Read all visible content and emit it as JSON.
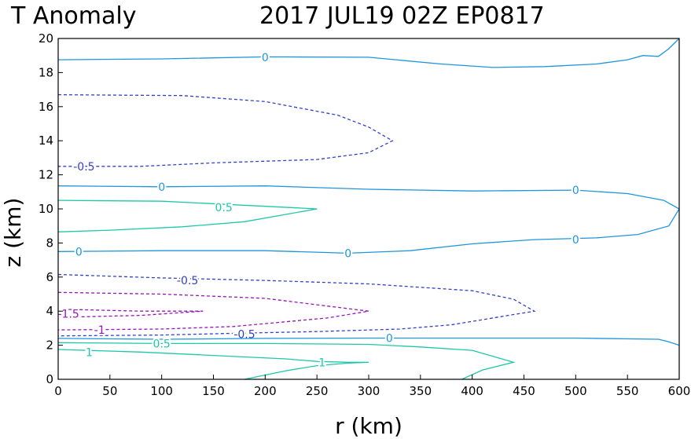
{
  "chart_data": {
    "type": "contour",
    "title_left": "T Anomaly",
    "title_right": "2017 JUL19 02Z   EP0817",
    "xlabel": "r (km)",
    "ylabel": "z (km)",
    "xlim": [
      0,
      600
    ],
    "ylim": [
      0,
      20
    ],
    "xticks": [
      "0",
      "50",
      "100",
      "150",
      "200",
      "250",
      "300",
      "350",
      "400",
      "450",
      "500",
      "550",
      "600"
    ],
    "yticks": [
      "0",
      "2",
      "4",
      "6",
      "8",
      "10",
      "12",
      "14",
      "16",
      "18",
      "20"
    ],
    "colors": {
      "zero": "#1e96dc",
      "positive": "#1ec8aa",
      "negative": "#3240c8",
      "strong_negative": "#9614b4"
    },
    "contours": [
      {
        "level": "0",
        "style": "zero",
        "points": [
          [
            0,
            18.75
          ],
          [
            100,
            18.8
          ],
          [
            200,
            18.92
          ],
          [
            300,
            18.9
          ],
          [
            370,
            18.5
          ],
          [
            420,
            18.3
          ],
          [
            470,
            18.35
          ],
          [
            520,
            18.5
          ],
          [
            550,
            18.75
          ],
          [
            565,
            19
          ],
          [
            580,
            18.95
          ],
          [
            590,
            19.4
          ],
          [
            600,
            20
          ]
        ],
        "labels": [
          {
            "text": "0",
            "x": 200,
            "y": 18.9
          }
        ]
      },
      {
        "level": "-0.5",
        "style": "negative",
        "points": [
          [
            0,
            16.7
          ],
          [
            120,
            16.65
          ],
          [
            200,
            16.3
          ],
          [
            270,
            15.5
          ],
          [
            300,
            14.8
          ],
          [
            323,
            14.0
          ],
          [
            300,
            13.3
          ],
          [
            250,
            12.9
          ],
          [
            150,
            12.7
          ],
          [
            80,
            12.5
          ],
          [
            0,
            12.5
          ]
        ],
        "labels": [
          {
            "text": "-0.5",
            "x": 25,
            "y": 12.5
          }
        ]
      },
      {
        "level": "0",
        "style": "zero",
        "points": [
          [
            0,
            11.35
          ],
          [
            100,
            11.3
          ],
          [
            200,
            11.35
          ],
          [
            300,
            11.15
          ],
          [
            400,
            11.05
          ],
          [
            500,
            11.1
          ],
          [
            550,
            10.9
          ],
          [
            585,
            10.5
          ],
          [
            600,
            10.0
          ],
          [
            590,
            9.0
          ],
          [
            560,
            8.5
          ],
          [
            520,
            8.3
          ],
          [
            460,
            8.2
          ],
          [
            400,
            7.95
          ],
          [
            340,
            7.55
          ],
          [
            280,
            7.4
          ],
          [
            200,
            7.55
          ],
          [
            100,
            7.55
          ],
          [
            0,
            7.5
          ]
        ],
        "labels": [
          {
            "text": "0",
            "x": 100,
            "y": 11.3
          },
          {
            "text": "0",
            "x": 500,
            "y": 11.1
          },
          {
            "text": "0",
            "x": 500,
            "y": 8.2
          },
          {
            "text": "0",
            "x": 280,
            "y": 7.4
          },
          {
            "text": "0",
            "x": 20,
            "y": 7.5
          }
        ]
      },
      {
        "level": "0.5",
        "style": "positive",
        "points": [
          [
            0,
            10.5
          ],
          [
            100,
            10.45
          ],
          [
            200,
            10.15
          ],
          [
            250,
            10.0
          ],
          [
            180,
            9.25
          ],
          [
            120,
            8.95
          ],
          [
            50,
            8.75
          ],
          [
            0,
            8.65
          ]
        ],
        "labels": [
          {
            "text": "0.5",
            "x": 160,
            "y": 10.1
          }
        ]
      },
      {
        "level": "-0.5",
        "style": "negative",
        "points": [
          [
            0,
            6.15
          ],
          [
            100,
            5.95
          ],
          [
            200,
            5.8
          ],
          [
            300,
            5.6
          ],
          [
            400,
            5.2
          ],
          [
            440,
            4.7
          ],
          [
            460,
            4.0
          ],
          [
            420,
            3.6
          ],
          [
            380,
            3.2
          ],
          [
            330,
            2.95
          ],
          [
            250,
            2.8
          ],
          [
            170,
            2.7
          ],
          [
            100,
            2.6
          ],
          [
            0,
            2.55
          ]
        ],
        "labels": [
          {
            "text": "-0.5",
            "x": 125,
            "y": 5.8
          },
          {
            "text": "-0.5",
            "x": 180,
            "y": 2.65
          }
        ]
      },
      {
        "level": "-1",
        "style": "strong_negative",
        "points": [
          [
            0,
            5.1
          ],
          [
            100,
            5.0
          ],
          [
            200,
            4.75
          ],
          [
            260,
            4.3
          ],
          [
            300,
            4.0
          ],
          [
            260,
            3.6
          ],
          [
            170,
            3.1
          ],
          [
            100,
            2.95
          ],
          [
            0,
            2.9
          ]
        ],
        "labels": [
          {
            "text": "-1",
            "x": 40,
            "y": 2.9
          }
        ]
      },
      {
        "level": "-1.5",
        "style": "strong_negative",
        "points": [
          [
            10,
            4.1
          ],
          [
            80,
            4.0
          ],
          [
            140,
            4.0
          ],
          [
            80,
            3.75
          ],
          [
            10,
            3.65
          ]
        ],
        "labels": [
          {
            "text": "-1.5",
            "x": 10,
            "y": 3.85
          }
        ]
      },
      {
        "level": "0",
        "style": "zero",
        "points": [
          [
            0,
            2.4
          ],
          [
            100,
            2.35
          ],
          [
            200,
            2.4
          ],
          [
            300,
            2.42
          ],
          [
            400,
            2.42
          ],
          [
            500,
            2.42
          ],
          [
            580,
            2.35
          ],
          [
            590,
            2.2
          ],
          [
            600,
            2.0
          ]
        ],
        "labels": [
          {
            "text": "0",
            "x": 320,
            "y": 2.42
          }
        ]
      },
      {
        "level": "0.5",
        "style": "positive",
        "points": [
          [
            0,
            2.15
          ],
          [
            100,
            2.1
          ],
          [
            200,
            2.1
          ],
          [
            300,
            2.05
          ],
          [
            350,
            1.9
          ],
          [
            400,
            1.7
          ],
          [
            440,
            1.0
          ],
          [
            410,
            0.55
          ],
          [
            390,
            0.0
          ]
        ],
        "labels": [
          {
            "text": "0.5",
            "x": 100,
            "y": 2.1
          }
        ]
      },
      {
        "level": "1",
        "style": "positive",
        "points": [
          [
            0,
            1.75
          ],
          [
            80,
            1.6
          ],
          [
            150,
            1.4
          ],
          [
            220,
            1.2
          ],
          [
            250,
            1.05
          ],
          [
            280,
            1.0
          ],
          [
            300,
            1.0
          ],
          [
            280,
            0.95
          ],
          [
            250,
            0.8
          ],
          [
            220,
            0.5
          ],
          [
            180,
            0.0
          ]
        ],
        "labels": [
          {
            "text": "1",
            "x": 30,
            "y": 1.6
          },
          {
            "text": "1",
            "x": 255,
            "y": 1.0
          }
        ]
      }
    ]
  }
}
